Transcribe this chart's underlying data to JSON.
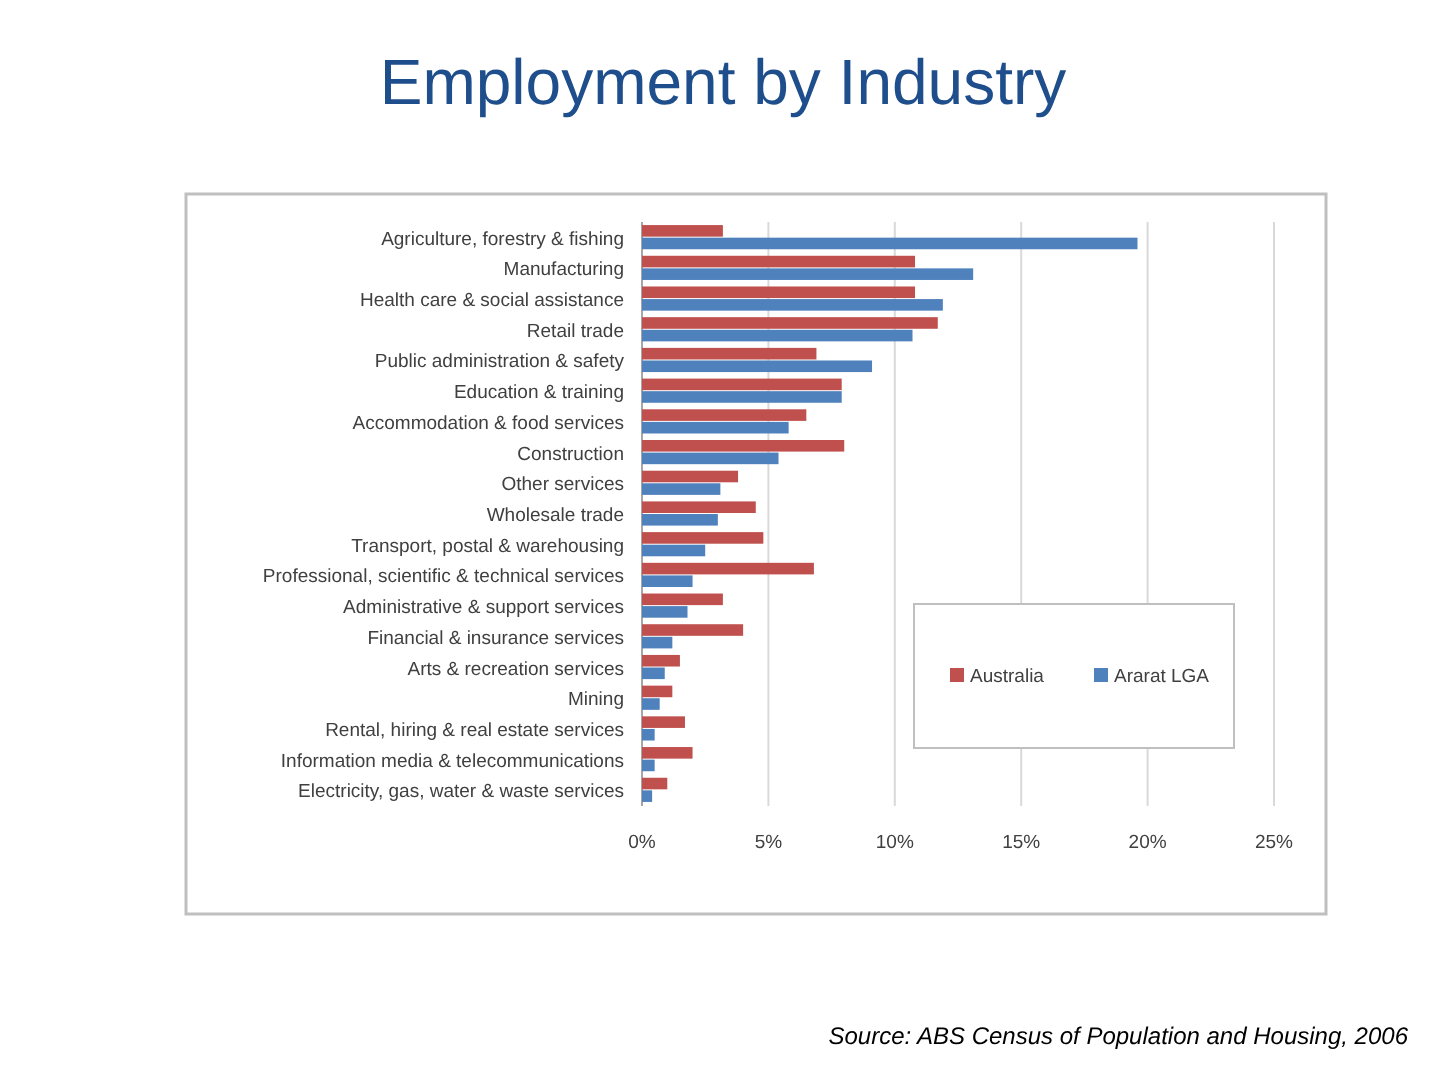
{
  "chart_data": {
    "type": "bar",
    "orientation": "horizontal",
    "title": "Employment by Industry",
    "categories": [
      "Agriculture, forestry & fishing",
      "Manufacturing",
      "Health care & social assistance",
      "Retail trade",
      "Public administration & safety",
      "Education & training",
      "Accommodation & food services",
      "Construction",
      "Other services",
      "Wholesale trade",
      "Transport, postal & warehousing",
      "Professional, scientific & technical services",
      "Administrative & support services",
      "Financial & insurance services",
      "Arts & recreation services",
      "Mining",
      "Rental, hiring & real estate services",
      "Information media & telecommunications",
      "Electricity, gas, water & waste services"
    ],
    "series": [
      {
        "name": "Australia",
        "color": "#c0504d",
        "values": [
          3.2,
          10.8,
          10.8,
          11.7,
          6.9,
          7.9,
          6.5,
          8.0,
          3.8,
          4.5,
          4.8,
          6.8,
          3.2,
          4.0,
          1.5,
          1.2,
          1.7,
          2.0,
          1.0
        ]
      },
      {
        "name": "Ararat LGA",
        "color": "#4f81bd",
        "values": [
          19.6,
          13.1,
          11.9,
          10.7,
          9.1,
          7.9,
          5.8,
          5.4,
          3.1,
          3.0,
          2.5,
          2.0,
          1.8,
          1.2,
          0.9,
          0.7,
          0.5,
          0.5,
          0.4
        ]
      }
    ],
    "xlim": [
      0,
      25
    ],
    "xticks": [
      {
        "value": 0,
        "label": "0%"
      },
      {
        "value": 5,
        "label": "5%"
      },
      {
        "value": 10,
        "label": "10%"
      },
      {
        "value": 15,
        "label": "15%"
      },
      {
        "value": 20,
        "label": "20%"
      },
      {
        "value": 25,
        "label": "25%"
      }
    ],
    "grid": "x",
    "legend": "bottom right",
    "annotations": [
      "Source: ABS Census of Population and Housing, 2006"
    ]
  }
}
